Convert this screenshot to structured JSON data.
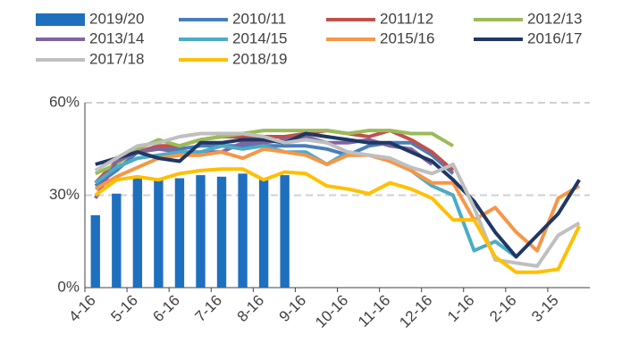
{
  "chart_data": {
    "type": "line",
    "categories": [
      "4-16",
      null,
      "5-16",
      null,
      "6-16",
      null,
      "7-16",
      null,
      "8-16",
      null,
      "9-16",
      null,
      "10-16",
      null,
      "11-16",
      null,
      "12-16",
      null,
      "1-16",
      null,
      "2-16",
      null,
      "3-15",
      null
    ],
    "ylim": [
      0,
      60
    ],
    "yticks": [
      {
        "value": 0,
        "label": "0%"
      },
      {
        "value": 30,
        "label": "30%"
      },
      {
        "value": 60,
        "label": "60%"
      }
    ],
    "grid": true,
    "series": [
      {
        "name": "2019/20",
        "type": "bar",
        "color": "#1f6fbf",
        "values": [
          23.5,
          30.5,
          35.5,
          35,
          35.5,
          36.5,
          36,
          37,
          35,
          36.5,
          null,
          null,
          null,
          null,
          null,
          null,
          null,
          null,
          null,
          null,
          null,
          null,
          null,
          null
        ]
      },
      {
        "name": "2010/11",
        "color": "#4a7ebb",
        "values": [
          33,
          38,
          44,
          45,
          45,
          46,
          46,
          46,
          46,
          46,
          46,
          45,
          43,
          46,
          47,
          47,
          43,
          37,
          null,
          null,
          null,
          null,
          null,
          null
        ]
      },
      {
        "name": "2011/12",
        "color": "#c0504d",
        "values": [
          34,
          41,
          44,
          46,
          46,
          48,
          49,
          49,
          49,
          49,
          50,
          51,
          50,
          49,
          51,
          48,
          44,
          38,
          null,
          null,
          null,
          null,
          null,
          null
        ]
      },
      {
        "name": "2012/13",
        "color": "#9bbb59",
        "values": [
          37,
          40,
          45,
          48,
          46,
          48,
          49,
          50,
          51,
          51,
          51,
          51,
          50,
          51,
          51,
          50,
          50,
          46,
          null,
          null,
          null,
          null,
          null,
          null
        ]
      },
      {
        "name": "2013/14",
        "color": "#8064a2",
        "values": [
          29,
          41,
          44,
          45,
          44,
          44,
          44,
          47,
          47,
          48,
          49,
          47,
          47,
          48,
          46,
          45,
          40,
          null,
          null,
          null,
          null,
          null,
          null,
          null
        ]
      },
      {
        "name": "2014/15",
        "color": "#4bacc6",
        "values": [
          34,
          39,
          42,
          43,
          44,
          44,
          46,
          45,
          46,
          44,
          44,
          40,
          44,
          43,
          42,
          38,
          33,
          30,
          12,
          15,
          10,
          null,
          null,
          null
        ]
      },
      {
        "name": "2015/16",
        "color": "#f79646",
        "values": [
          32,
          36,
          39,
          42,
          43,
          43,
          44,
          42,
          45,
          44,
          43,
          40,
          43,
          43,
          41,
          38,
          34,
          34,
          22,
          26,
          18,
          12,
          29,
          33
        ]
      },
      {
        "name": "2016/17",
        "color": "#1f3864",
        "values": [
          40,
          42,
          44,
          42,
          41,
          47,
          47,
          48,
          48,
          47,
          50,
          49,
          48,
          47,
          47,
          44,
          41,
          35,
          28,
          18,
          10,
          17,
          24,
          35
        ]
      },
      {
        "name": "2017/18",
        "color": "#bfbfbf",
        "values": [
          38,
          42,
          46,
          47,
          49,
          50,
          50,
          50,
          49,
          47,
          48,
          47,
          44,
          43,
          42,
          39,
          37,
          40,
          26,
          9,
          8,
          7,
          17,
          21
        ]
      },
      {
        "name": "2018/19",
        "color": "#ffc000",
        "values": [
          30,
          35,
          36,
          35,
          37,
          38,
          38.5,
          38.5,
          35,
          37.5,
          37,
          33,
          32,
          30.5,
          34,
          32,
          29,
          22,
          22,
          10,
          5,
          5,
          6,
          20
        ]
      }
    ]
  }
}
